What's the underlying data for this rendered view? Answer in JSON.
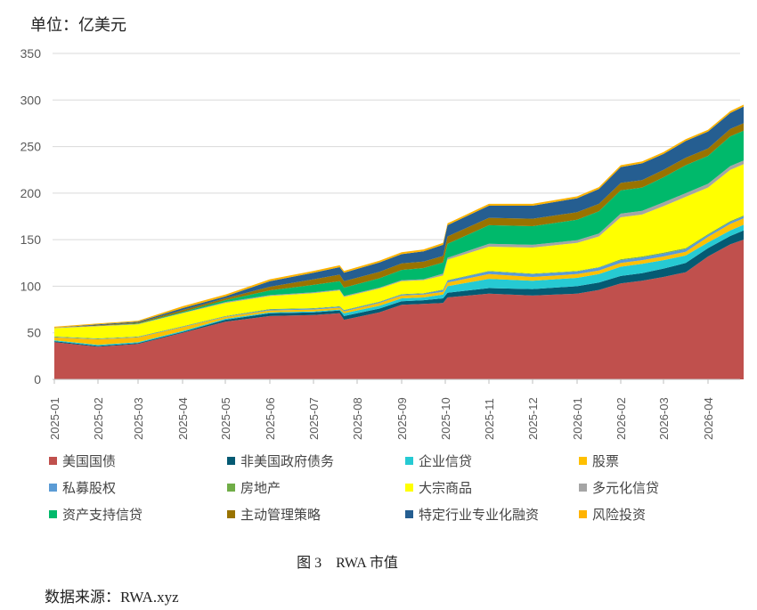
{
  "unit_label": "单位：亿美元",
  "caption": "图 3　RWA 市值",
  "source": "数据来源：RWA.xyz",
  "chart_data": {
    "type": "area",
    "stacked": true,
    "title": "RWA 市值",
    "ylabel": "亿美元",
    "ylim": [
      0,
      350
    ],
    "yticks": [
      0,
      50,
      100,
      150,
      200,
      250,
      300,
      350
    ],
    "grid": true,
    "legend_position": "bottom",
    "xtick_labels": [
      "2025-01",
      "2025-02",
      "2025-03",
      "2025-04",
      "2025-05",
      "2025-06",
      "2025-07",
      "2025-08",
      "2025-09",
      "2025-10",
      "2025-11",
      "2025-12",
      "2026-01",
      "2026-02",
      "2026-03",
      "2026-04"
    ],
    "x_months_since_2025_01": [
      0,
      1,
      2,
      3,
      4,
      5,
      6,
      6.6,
      6.7,
      7.5,
      8,
      8.5,
      8.95,
      9.05,
      10,
      11,
      12,
      12.5,
      13,
      13.5,
      14,
      14.5,
      15,
      15.5,
      15.8
    ],
    "series": [
      {
        "name": "美国国债",
        "color": "#C0504D",
        "values": [
          40,
          35,
          38,
          50,
          62,
          68,
          69,
          71,
          64,
          72,
          80,
          81,
          82,
          88,
          92,
          90,
          92,
          96,
          103,
          106,
          110,
          115,
          132,
          145,
          150
        ]
      },
      {
        "name": "非美国政府债务",
        "color": "#045A73",
        "values": [
          1,
          1,
          1,
          1,
          2,
          3,
          3,
          3,
          4,
          4,
          4,
          4,
          5,
          5,
          6,
          7,
          8,
          8,
          8,
          8,
          9,
          10,
          9,
          9,
          10
        ]
      },
      {
        "name": "企业信贷",
        "color": "#26CAD3",
        "values": [
          1,
          1,
          1,
          1,
          1,
          1,
          1,
          1,
          3,
          3,
          3,
          3,
          4,
          7,
          10,
          9,
          9,
          9,
          10,
          10,
          9,
          8,
          6,
          6,
          6
        ]
      },
      {
        "name": "股票",
        "color": "#FFC000",
        "values": [
          3,
          6,
          5,
          4,
          2,
          2,
          2,
          2,
          2,
          3,
          3,
          3,
          3,
          4,
          5,
          4,
          4,
          4,
          4,
          4,
          4,
          4,
          6,
          7,
          7
        ]
      },
      {
        "name": "私募股权",
        "color": "#5B9BD5",
        "values": [
          0.5,
          0.5,
          0.5,
          0.5,
          0.5,
          1,
          1,
          1,
          1,
          1,
          1,
          1,
          2,
          2,
          3,
          3,
          3,
          3,
          3,
          3,
          3,
          3,
          2,
          2,
          2
        ]
      },
      {
        "name": "房地产",
        "color": "#70AD47",
        "values": [
          0.5,
          0.5,
          0.5,
          0.5,
          0.5,
          0.5,
          0.5,
          0.5,
          0.5,
          0.5,
          0.5,
          0.5,
          0.5,
          0.5,
          0.5,
          0.5,
          0.5,
          0.5,
          1,
          1,
          1,
          1,
          1,
          1,
          1
        ]
      },
      {
        "name": "大宗商品",
        "color": "#FFFF00",
        "values": [
          9,
          13,
          13,
          14,
          14,
          14,
          16,
          17,
          14,
          14,
          14,
          14,
          15,
          22,
          26,
          28,
          30,
          33,
          45,
          45,
          50,
          55,
          50,
          55,
          55
        ]
      },
      {
        "name": "多元化信贷",
        "color": "#A5A5A5",
        "values": [
          0.5,
          0.5,
          0.5,
          0.5,
          1,
          1,
          1,
          1,
          1,
          1,
          1,
          1,
          2,
          2,
          3,
          3,
          3,
          3,
          4,
          4,
          4,
          4,
          4,
          4,
          4
        ]
      },
      {
        "name": "资产支持信贷",
        "color": "#00B96B",
        "values": [
          0,
          0,
          0.5,
          1,
          2,
          5,
          8,
          9,
          9,
          10,
          11,
          12,
          12,
          15,
          20,
          20,
          22,
          24,
          25,
          25,
          27,
          30,
          30,
          32,
          32
        ]
      },
      {
        "name": "主动管理策略",
        "color": "#997300",
        "values": [
          0,
          0.5,
          1,
          2,
          2,
          4,
          6,
          7,
          7,
          7,
          7,
          7,
          7,
          8,
          8,
          8,
          8,
          8,
          8,
          8,
          8,
          8,
          8,
          8,
          8
        ]
      },
      {
        "name": "特定行业专业化融资",
        "color": "#255E91",
        "values": [
          0,
          1,
          1,
          2,
          2,
          6,
          7,
          8,
          9,
          10,
          10,
          11,
          12,
          12,
          13,
          14,
          15,
          16,
          17,
          18,
          17,
          18,
          18,
          17,
          18
        ]
      },
      {
        "name": "风险投资",
        "color": "#FFB300",
        "values": [
          1,
          1,
          1,
          2,
          2,
          2,
          2,
          2,
          2,
          2,
          2,
          2,
          2,
          2,
          2,
          2,
          2,
          2,
          2,
          2,
          2,
          2,
          2,
          2,
          2
        ]
      }
    ]
  }
}
